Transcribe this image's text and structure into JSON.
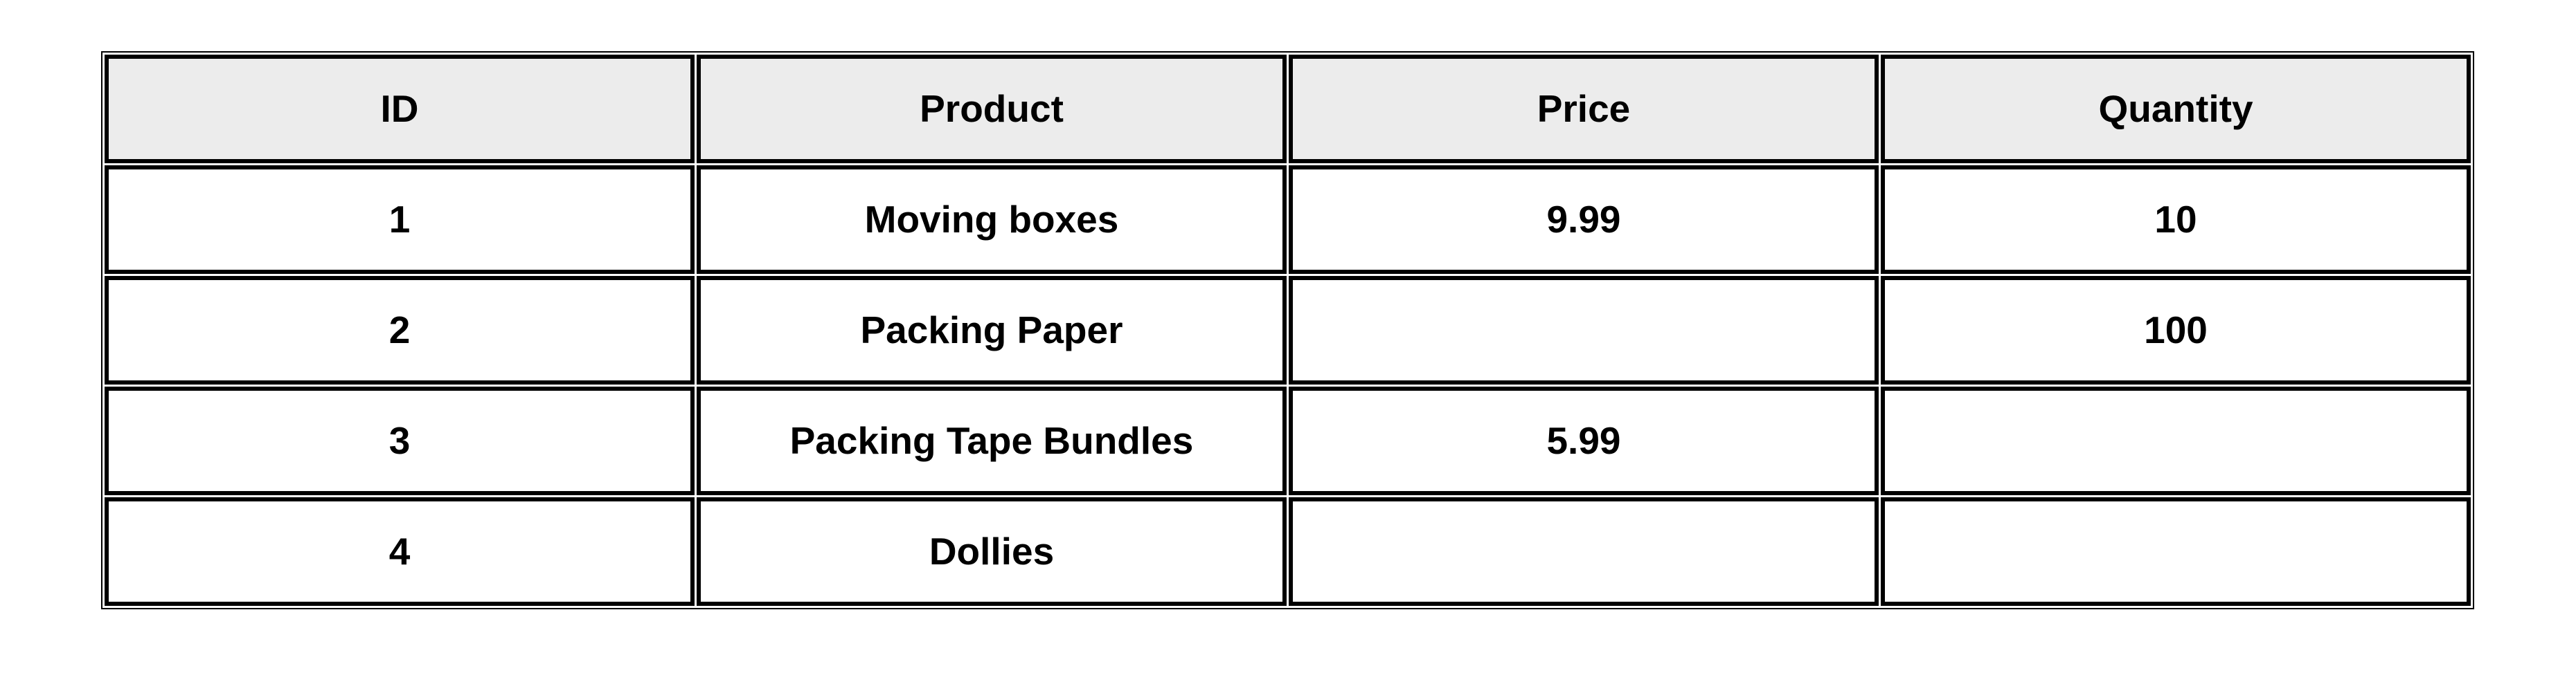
{
  "table": {
    "columns": [
      "ID",
      "Product",
      "Price",
      "Quantity"
    ],
    "rows": [
      [
        "1",
        "Moving boxes",
        "9.99",
        "10"
      ],
      [
        "2",
        "Packing Paper",
        "",
        "100"
      ],
      [
        "3",
        "Packing Tape Bundles",
        "5.99",
        ""
      ],
      [
        "4",
        "Dollies",
        "",
        ""
      ]
    ]
  },
  "colors": {
    "header_bg": "#ececec",
    "border": "#000000",
    "text": "#000000",
    "page_bg": "#ffffff"
  }
}
